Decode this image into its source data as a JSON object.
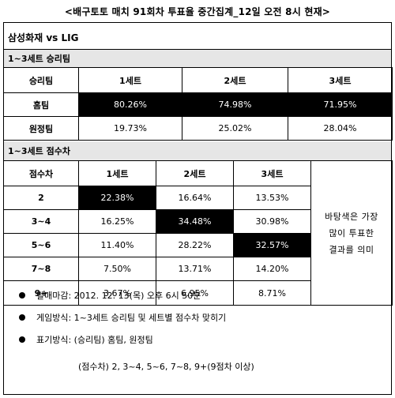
{
  "title": "<배구토토 매치 91회차 투표율 중간집계_12일 오전 8시 현재>",
  "match": "삼성화재 vs LIG",
  "section1": {
    "label": "1~3세트 승리팀",
    "corner": "승리팀",
    "columns": [
      "1세트",
      "2세트",
      "3세트"
    ],
    "rows": [
      {
        "label": "홈팀",
        "values": [
          "80.26%",
          "74.98%",
          "71.95%"
        ],
        "highlight": [
          true,
          true,
          true
        ]
      },
      {
        "label": "원정팀",
        "values": [
          "19.73%",
          "25.02%",
          "28.04%"
        ],
        "highlight": [
          false,
          false,
          false
        ]
      }
    ]
  },
  "section2": {
    "label": "1~3세트 점수차",
    "corner": "점수차",
    "columns": [
      "1세트",
      "2세트",
      "3세트"
    ],
    "rows": [
      {
        "label": "2",
        "values": [
          "22.38%",
          "16.64%",
          "13.53%"
        ],
        "highlight": [
          true,
          false,
          false
        ]
      },
      {
        "label": "3~4",
        "values": [
          "16.25%",
          "34.48%",
          "30.98%"
        ],
        "highlight": [
          false,
          true,
          false
        ]
      },
      {
        "label": "5~6",
        "values": [
          "11.40%",
          "28.22%",
          "32.57%"
        ],
        "highlight": [
          false,
          false,
          true
        ]
      },
      {
        "label": "7~8",
        "values": [
          "7.50%",
          "13.71%",
          "14.20%"
        ],
        "highlight": [
          false,
          false,
          false
        ]
      },
      {
        "label": "9+",
        "values": [
          "3.67%",
          "6.95%",
          "8.71%"
        ],
        "highlight": [
          false,
          false,
          false
        ]
      }
    ],
    "note": [
      "바탕색은 가장",
      "많이 투표한",
      "결과를 의미"
    ]
  },
  "bullets": [
    "발매마감: 2012. 12. 13(목) 오후 6시 50분",
    "게임방식: 1~3세트 승리팀 및 세트별 점수차 맞히기",
    "표기방식: (승리팀) 홈팀, 원정팀"
  ],
  "footnote": "(점수차) 2, 3~4, 5~6, 7~8, 9+(9점차 이상)"
}
